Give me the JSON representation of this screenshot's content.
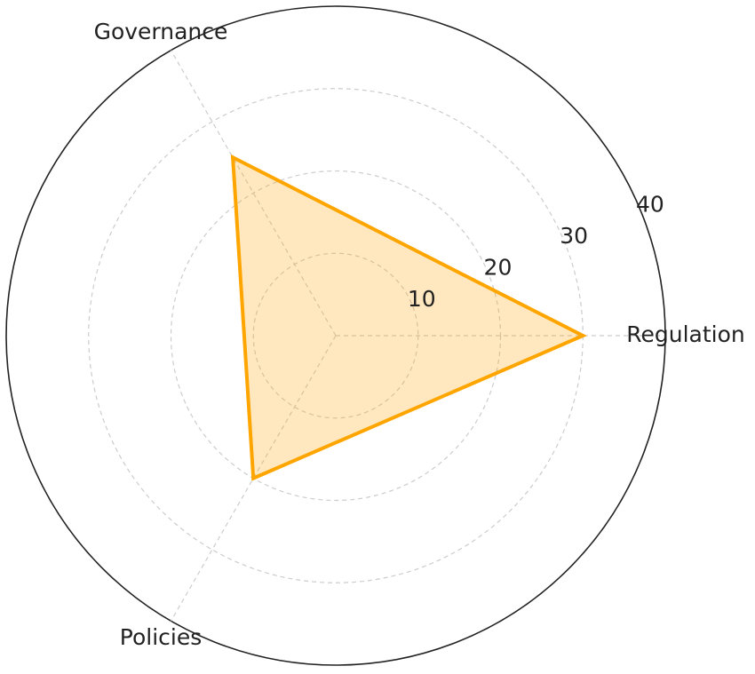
{
  "chart_data": {
    "type": "radar",
    "categories": [
      "Regulation",
      "Governance",
      "Policies"
    ],
    "values": [
      30,
      25,
      20
    ],
    "color": "#FFA500",
    "ylim": [
      0,
      40
    ],
    "yticks": [
      10,
      20,
      30,
      40
    ],
    "grid": true
  }
}
